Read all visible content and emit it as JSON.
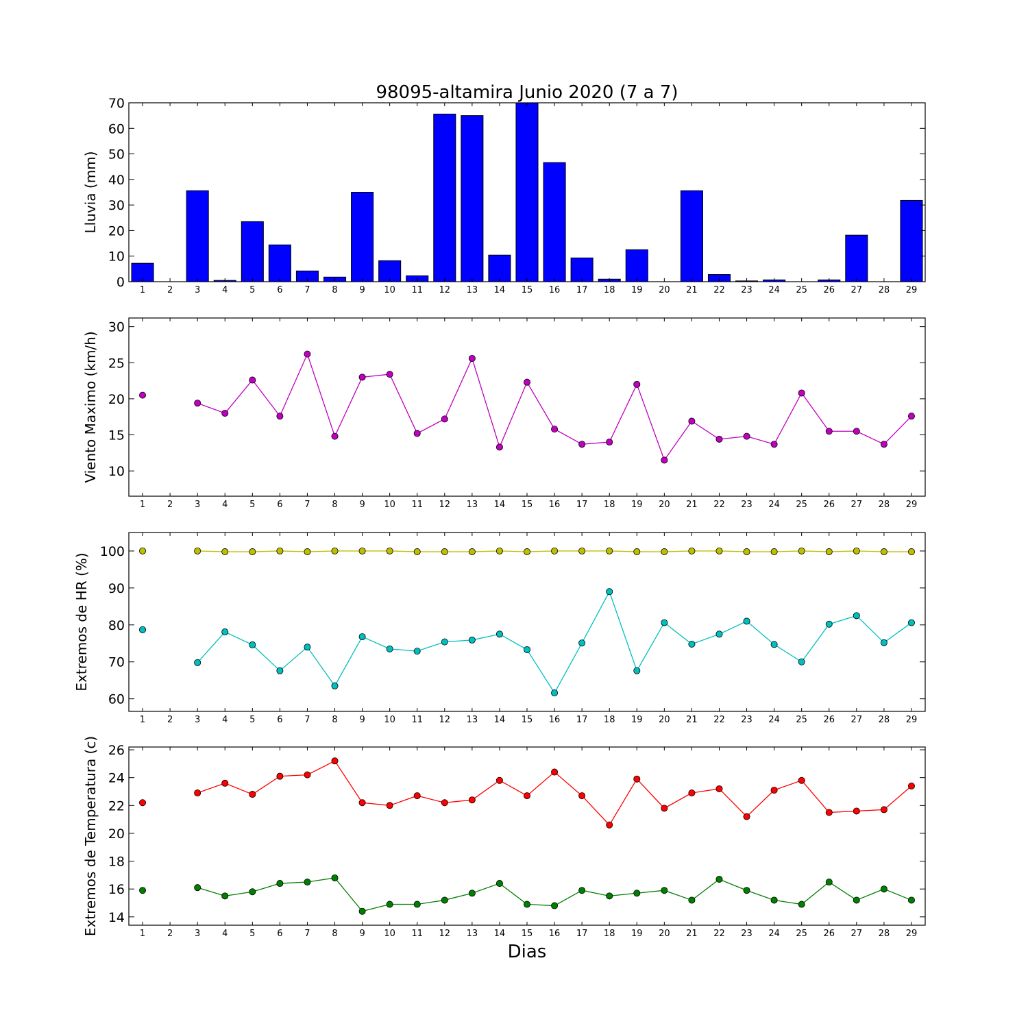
{
  "chart_data": [
    {
      "type": "bar",
      "title": "98095-altamira Junio 2020  (7 a 7)",
      "ylabel": "Lluvia (mm)",
      "xlabel": "",
      "categories": [
        "1",
        "2",
        "3",
        "4",
        "5",
        "6",
        "7",
        "8",
        "9",
        "10",
        "11",
        "12",
        "13",
        "14",
        "15",
        "16",
        "17",
        "18",
        "19",
        "20",
        "21",
        "22",
        "23",
        "24",
        "25",
        "26",
        "27",
        "28",
        "29"
      ],
      "values": [
        7.2,
        0,
        35.6,
        0.5,
        23.5,
        14.4,
        4.2,
        1.8,
        35.0,
        8.2,
        2.3,
        65.6,
        65.0,
        10.4,
        70.0,
        46.6,
        9.3,
        1.0,
        12.5,
        0,
        35.6,
        2.8,
        0.3,
        0.7,
        0,
        0.7,
        18.2,
        0,
        31.8
      ],
      "ylim": [
        0,
        70
      ],
      "yticks": [
        "0",
        "10",
        "20",
        "30",
        "40",
        "50",
        "60",
        "70"
      ],
      "series": [
        {
          "color": "#0000ff"
        }
      ]
    },
    {
      "type": "line",
      "ylabel": "Viento Maximo (km/h)",
      "categories": [
        "1",
        "2",
        "3",
        "4",
        "5",
        "6",
        "7",
        "8",
        "9",
        "10",
        "11",
        "12",
        "13",
        "14",
        "15",
        "16",
        "17",
        "18",
        "19",
        "20",
        "21",
        "22",
        "23",
        "24",
        "25",
        "26",
        "27",
        "28",
        "29"
      ],
      "ylim": [
        6.5,
        31.2
      ],
      "yticks": [
        "10",
        "15",
        "20",
        "25",
        "30"
      ],
      "series": [
        {
          "color": "#bf00bf",
          "values": [
            20.5,
            null,
            19.4,
            18.0,
            22.6,
            17.6,
            26.2,
            14.8,
            23.0,
            23.4,
            15.2,
            17.2,
            25.6,
            13.3,
            22.3,
            15.8,
            13.7,
            14.0,
            22.0,
            11.5,
            16.9,
            14.4,
            14.8,
            13.7,
            20.8,
            15.5,
            15.5,
            13.7,
            17.6
          ]
        }
      ]
    },
    {
      "type": "line",
      "ylabel": "Extremos de HR (%)",
      "categories": [
        "1",
        "2",
        "3",
        "4",
        "5",
        "6",
        "7",
        "8",
        "9",
        "10",
        "11",
        "12",
        "13",
        "14",
        "15",
        "16",
        "17",
        "18",
        "19",
        "20",
        "21",
        "22",
        "23",
        "24",
        "25",
        "26",
        "27",
        "28",
        "29"
      ],
      "ylim": [
        56.6,
        105
      ],
      "yticks": [
        "60",
        "70",
        "80",
        "90",
        "100"
      ],
      "series": [
        {
          "color": "#bfbf00",
          "values": [
            100,
            null,
            100,
            99.8,
            99.8,
            100,
            99.8,
            100,
            100,
            100,
            99.8,
            99.8,
            99.8,
            100,
            99.8,
            100,
            100,
            100,
            99.8,
            99.8,
            100,
            100,
            99.8,
            99.8,
            100,
            99.8,
            100,
            99.8,
            99.8
          ]
        },
        {
          "color": "#00bfbf",
          "values": [
            78.7,
            null,
            69.8,
            78.1,
            74.6,
            67.6,
            74.0,
            63.5,
            76.8,
            73.5,
            72.9,
            75.4,
            75.9,
            77.5,
            73.3,
            61.6,
            75.1,
            89.0,
            67.6,
            80.6,
            74.8,
            77.5,
            81.0,
            74.7,
            70.0,
            80.2,
            82.5,
            75.2,
            80.6
          ]
        }
      ]
    },
    {
      "type": "line",
      "ylabel": "Extremos de Temperatura (c)",
      "xlabel": "Dias",
      "categories": [
        "1",
        "2",
        "3",
        "4",
        "5",
        "6",
        "7",
        "8",
        "9",
        "10",
        "11",
        "12",
        "13",
        "14",
        "15",
        "16",
        "17",
        "18",
        "19",
        "20",
        "21",
        "22",
        "23",
        "24",
        "25",
        "26",
        "27",
        "28",
        "29"
      ],
      "ylim": [
        13.4,
        26.2
      ],
      "yticks": [
        "14",
        "16",
        "18",
        "20",
        "22",
        "24",
        "26"
      ],
      "series": [
        {
          "color": "#ff0000",
          "values": [
            22.2,
            null,
            22.9,
            23.6,
            22.8,
            24.1,
            24.2,
            25.2,
            22.2,
            22.0,
            22.7,
            22.2,
            22.4,
            23.8,
            22.7,
            24.4,
            22.7,
            20.6,
            23.9,
            21.8,
            22.9,
            23.2,
            21.2,
            23.1,
            23.8,
            21.5,
            21.6,
            21.7,
            23.4
          ]
        },
        {
          "color": "#007f00",
          "values": [
            15.9,
            null,
            16.1,
            15.5,
            15.8,
            16.4,
            16.5,
            16.8,
            14.4,
            14.9,
            14.9,
            15.2,
            15.7,
            16.4,
            14.9,
            14.8,
            15.9,
            15.5,
            15.7,
            15.9,
            15.2,
            16.7,
            15.9,
            15.2,
            14.9,
            16.5,
            15.2,
            16.0,
            15.2
          ]
        }
      ]
    }
  ]
}
